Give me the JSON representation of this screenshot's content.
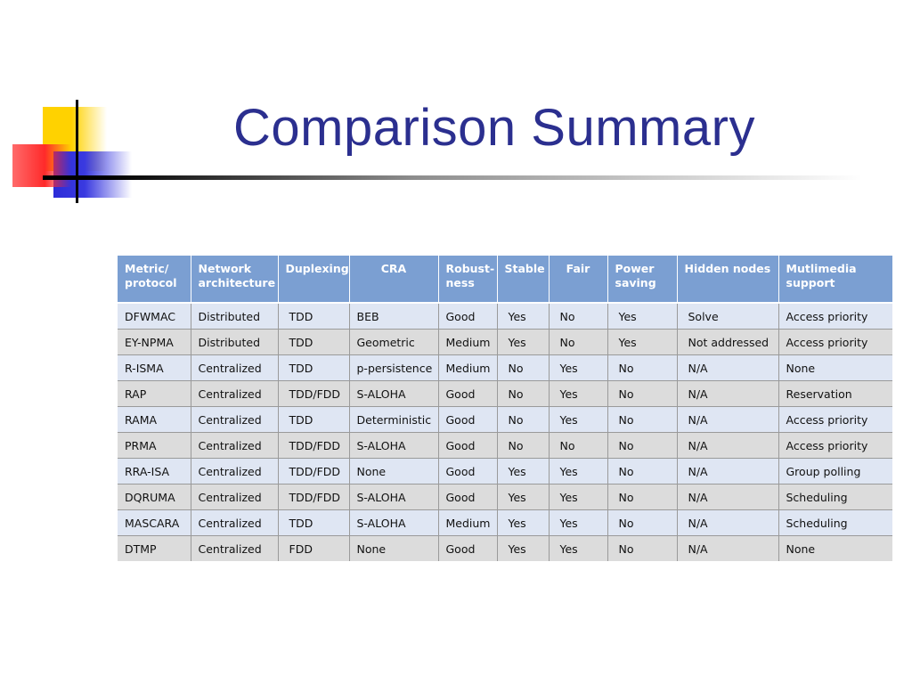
{
  "slide": {
    "title": "Comparison Summary"
  },
  "table": {
    "headers": [
      "Metric/ protocol",
      "Network architecture",
      "Duplexing",
      "CRA",
      "Robust- ness",
      "Stable",
      "Fair",
      "Power saving",
      "Hidden nodes",
      "Mutlimedia support"
    ],
    "rows": [
      [
        "DFWMAC",
        "Distributed",
        "TDD",
        "BEB",
        "Good",
        "Yes",
        "No",
        "Yes",
        "Solve",
        "Access priority"
      ],
      [
        "EY-NPMA",
        "Distributed",
        "TDD",
        "Geometric",
        "Medium",
        "Yes",
        "No",
        "Yes",
        "Not addressed",
        "Access priority"
      ],
      [
        "R-ISMA",
        "Centralized",
        "TDD",
        "p-persistence",
        "Medium",
        "No",
        "Yes",
        "No",
        "N/A",
        "None"
      ],
      [
        "RAP",
        "Centralized",
        "TDD/FDD",
        "S-ALOHA",
        "Good",
        "No",
        "Yes",
        "No",
        "N/A",
        "Reservation"
      ],
      [
        "RAMA",
        "Centralized",
        "TDD",
        "Deterministic",
        "Good",
        "No",
        "Yes",
        "No",
        "N/A",
        "Access priority"
      ],
      [
        "PRMA",
        "Centralized",
        "TDD/FDD",
        "S-ALOHA",
        "Good",
        "No",
        "No",
        "No",
        "N/A",
        "Access priority"
      ],
      [
        "RRA-ISA",
        "Centralized",
        "TDD/FDD",
        "None",
        "Good",
        "Yes",
        "Yes",
        "No",
        "N/A",
        "Group polling"
      ],
      [
        "DQRUMA",
        "Centralized",
        "TDD/FDD",
        "S-ALOHA",
        "Good",
        "Yes",
        "Yes",
        "No",
        "N/A",
        "Scheduling"
      ],
      [
        "MASCARA",
        "Centralized",
        "TDD",
        "S-ALOHA",
        "Medium",
        "Yes",
        "Yes",
        "No",
        "N/A",
        "Scheduling"
      ],
      [
        "DTMP",
        "Centralized",
        "FDD",
        "None",
        "Good",
        "Yes",
        "Yes",
        "No",
        "N/A",
        "None"
      ]
    ]
  },
  "colors": {
    "title": "#2b2f8f",
    "header_bg": "#7b9fd2",
    "row_odd": "#dfe6f3",
    "row_even": "#dcdcdc"
  }
}
